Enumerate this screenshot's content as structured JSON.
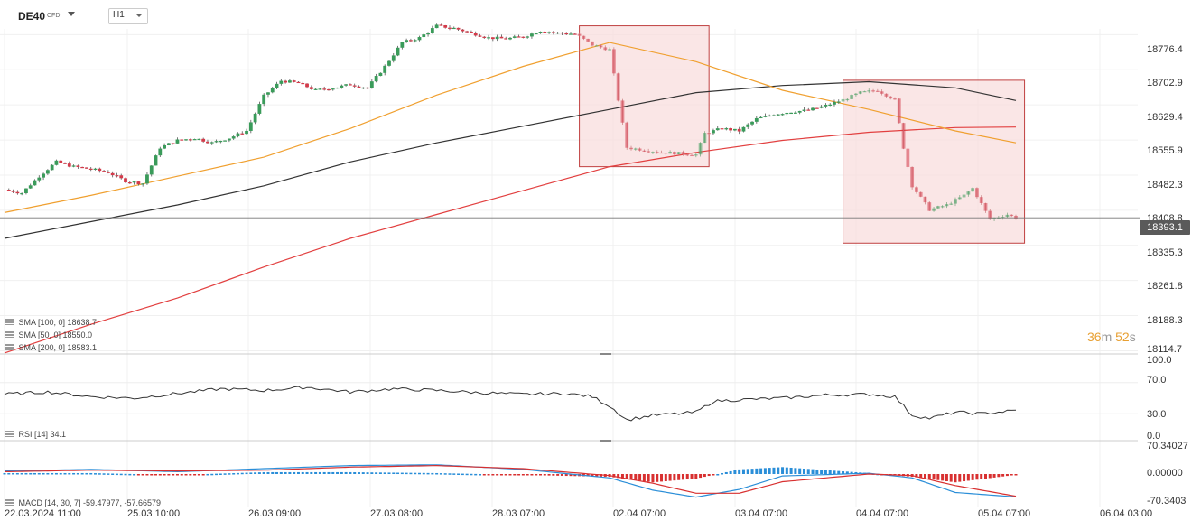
{
  "toolbar": {
    "symbol": "DE40",
    "symbol_type": "CFD",
    "timeframe": "H1"
  },
  "price_axis": {
    "labels": [
      "18776.4",
      "18702.9",
      "18629.4",
      "18555.9",
      "18482.3",
      "18408.8",
      "18335.3",
      "18261.8",
      "18188.3",
      "18114.7"
    ],
    "current_price": "18393.1"
  },
  "countdown": {
    "minutes": "36",
    "m": "m",
    "seconds": "52",
    "s": "s"
  },
  "indicators": {
    "sma100": "SMA [100,  0]  18638.7",
    "sma50": "SMA [50,  0]  18550.0",
    "sma200": "SMA [200,  0]  18583.1",
    "rsi": "RSI  [14]  34.1",
    "macd": "MACD  [14,  30,  7]  -59.47977,  -57.66579"
  },
  "rsi_axis": [
    "100.0",
    "70.0",
    "30.0",
    "0.0"
  ],
  "macd_axis": [
    "70.34027",
    "0.00000",
    "-70.3403"
  ],
  "time_axis": [
    "22.03.2024   11:00",
    "25.03  10:00",
    "26.03  09:00",
    "27.03  08:00",
    "28.03  07:00",
    "02.04  07:00",
    "03.04  07:00",
    "04.04  07:00",
    "05.04  07:00",
    "06.04  03:00"
  ],
  "colors": {
    "up_candle": "#3a9b5a",
    "down_candle": "#d43a4a",
    "sma50": "#f0a030",
    "sma100": "#333333",
    "sma200": "#e24040",
    "highlight_fill": "#f8dede",
    "highlight_border": "#c04040",
    "macd_line": "#2a8ed8",
    "signal_line": "#d83030",
    "rsi_line": "#333333",
    "countdown": "#e8a033"
  },
  "chart_data": {
    "type": "candlestick",
    "symbol": "DE40",
    "timeframe": "H1",
    "x_ticks": [
      "22.03.2024 11:00",
      "25.03 10:00",
      "26.03 09:00",
      "27.03 08:00",
      "28.03 07:00",
      "02.04 07:00",
      "03.04 07:00",
      "04.04 07:00",
      "05.04 07:00",
      "06.04 03:00"
    ],
    "y_ticks": [
      18776.4,
      18702.9,
      18629.4,
      18555.9,
      18482.3,
      18408.8,
      18335.3,
      18261.8,
      18188.3,
      18114.7
    ],
    "ylim": [
      18108,
      18815
    ],
    "last_price": 18393.1,
    "close_path": [
      [
        0,
        18452
      ],
      [
        4,
        18445
      ],
      [
        8,
        18480
      ],
      [
        12,
        18510
      ],
      [
        16,
        18500
      ],
      [
        20,
        18495
      ],
      [
        24,
        18488
      ],
      [
        28,
        18470
      ],
      [
        32,
        18465
      ],
      [
        36,
        18540
      ],
      [
        40,
        18555
      ],
      [
        44,
        18560
      ],
      [
        48,
        18550
      ],
      [
        52,
        18560
      ],
      [
        56,
        18575
      ],
      [
        60,
        18648
      ],
      [
        64,
        18680
      ],
      [
        68,
        18675
      ],
      [
        72,
        18660
      ],
      [
        76,
        18665
      ],
      [
        80,
        18672
      ],
      [
        84,
        18665
      ],
      [
        88,
        18710
      ],
      [
        92,
        18760
      ],
      [
        96,
        18770
      ],
      [
        100,
        18795
      ],
      [
        104,
        18790
      ],
      [
        108,
        18780
      ],
      [
        112,
        18770
      ],
      [
        116,
        18768
      ],
      [
        120,
        18772
      ],
      [
        124,
        18785
      ],
      [
        128,
        18780
      ],
      [
        132,
        18778
      ],
      [
        136,
        18755
      ],
      [
        140,
        18745
      ],
      [
        142,
        18640
      ],
      [
        144,
        18540
      ],
      [
        148,
        18535
      ],
      [
        152,
        18530
      ],
      [
        156,
        18528
      ],
      [
        160,
        18525
      ],
      [
        162,
        18570
      ],
      [
        166,
        18580
      ],
      [
        170,
        18575
      ],
      [
        174,
        18600
      ],
      [
        178,
        18610
      ],
      [
        182,
        18615
      ],
      [
        186,
        18618
      ],
      [
        190,
        18628
      ],
      [
        194,
        18640
      ],
      [
        198,
        18655
      ],
      [
        202,
        18660
      ],
      [
        206,
        18640
      ],
      [
        208,
        18540
      ],
      [
        210,
        18460
      ],
      [
        214,
        18410
      ],
      [
        218,
        18420
      ],
      [
        222,
        18440
      ],
      [
        224,
        18455
      ],
      [
        228,
        18390
      ],
      [
        232,
        18400
      ],
      [
        234,
        18393
      ]
    ],
    "overlays": [
      {
        "name": "SMA [50, 0]",
        "last": 18550.0,
        "path": [
          [
            0,
            18404
          ],
          [
            20,
            18440
          ],
          [
            40,
            18480
          ],
          [
            60,
            18520
          ],
          [
            80,
            18580
          ],
          [
            100,
            18650
          ],
          [
            120,
            18710
          ],
          [
            140,
            18760
          ],
          [
            160,
            18720
          ],
          [
            180,
            18660
          ],
          [
            200,
            18620
          ],
          [
            220,
            18575
          ],
          [
            234,
            18550
          ]
        ]
      },
      {
        "name": "SMA [100, 0]",
        "last": 18638.7,
        "path": [
          [
            0,
            18350
          ],
          [
            20,
            18385
          ],
          [
            40,
            18420
          ],
          [
            60,
            18460
          ],
          [
            80,
            18510
          ],
          [
            100,
            18550
          ],
          [
            120,
            18585
          ],
          [
            140,
            18620
          ],
          [
            160,
            18655
          ],
          [
            180,
            18670
          ],
          [
            200,
            18678
          ],
          [
            220,
            18665
          ],
          [
            234,
            18638.7
          ]
        ]
      },
      {
        "name": "SMA [200, 0]",
        "last": 18583.1,
        "path": [
          [
            0,
            18110
          ],
          [
            20,
            18170
          ],
          [
            40,
            18225
          ],
          [
            60,
            18290
          ],
          [
            80,
            18350
          ],
          [
            100,
            18400
          ],
          [
            120,
            18450
          ],
          [
            140,
            18500
          ],
          [
            160,
            18530
          ],
          [
            180,
            18555
          ],
          [
            200,
            18572
          ],
          [
            220,
            18582
          ],
          [
            234,
            18583.1
          ]
        ]
      }
    ],
    "highlight_regions": [
      {
        "x_start": 133,
        "x_end": 163,
        "y_low": 18500,
        "y_high": 18795
      },
      {
        "x_start": 194,
        "x_end": 236,
        "y_low": 18340,
        "y_high": 18681
      }
    ],
    "rsi": {
      "name": "RSI [14]",
      "last": 34.1,
      "ylim": [
        0,
        100
      ],
      "levels": [
        70,
        30
      ],
      "path": [
        [
          0,
          55
        ],
        [
          10,
          58
        ],
        [
          20,
          52
        ],
        [
          30,
          50
        ],
        [
          40,
          56
        ],
        [
          50,
          62
        ],
        [
          60,
          60
        ],
        [
          70,
          64
        ],
        [
          80,
          58
        ],
        [
          90,
          62
        ],
        [
          100,
          60
        ],
        [
          110,
          57
        ],
        [
          120,
          55
        ],
        [
          130,
          56
        ],
        [
          136,
          52
        ],
        [
          140,
          40
        ],
        [
          144,
          22
        ],
        [
          150,
          28
        ],
        [
          156,
          30
        ],
        [
          160,
          32
        ],
        [
          164,
          46
        ],
        [
          170,
          48
        ],
        [
          180,
          50
        ],
        [
          190,
          54
        ],
        [
          200,
          55
        ],
        [
          206,
          52
        ],
        [
          210,
          28
        ],
        [
          214,
          24
        ],
        [
          220,
          32
        ],
        [
          226,
          30
        ],
        [
          234,
          34.1
        ]
      ]
    },
    "macd": {
      "name": "MACD [14, 30, 7]",
      "macd_last": -59.47977,
      "signal_last": -57.66579,
      "ylim": [
        -70.3403,
        70.34027
      ],
      "macd_path": [
        [
          0,
          8
        ],
        [
          20,
          12
        ],
        [
          40,
          6
        ],
        [
          60,
          14
        ],
        [
          80,
          22
        ],
        [
          100,
          24
        ],
        [
          120,
          12
        ],
        [
          140,
          -10
        ],
        [
          150,
          -42
        ],
        [
          160,
          -60
        ],
        [
          170,
          -40
        ],
        [
          180,
          -5
        ],
        [
          200,
          2
        ],
        [
          210,
          -10
        ],
        [
          220,
          -48
        ],
        [
          234,
          -59.48
        ]
      ],
      "signal_path": [
        [
          0,
          6
        ],
        [
          20,
          10
        ],
        [
          40,
          8
        ],
        [
          60,
          10
        ],
        [
          80,
          18
        ],
        [
          100,
          22
        ],
        [
          120,
          14
        ],
        [
          140,
          -4
        ],
        [
          150,
          -24
        ],
        [
          160,
          -50
        ],
        [
          170,
          -50
        ],
        [
          180,
          -20
        ],
        [
          200,
          0
        ],
        [
          210,
          -4
        ],
        [
          220,
          -30
        ],
        [
          234,
          -57.67
        ]
      ]
    }
  }
}
